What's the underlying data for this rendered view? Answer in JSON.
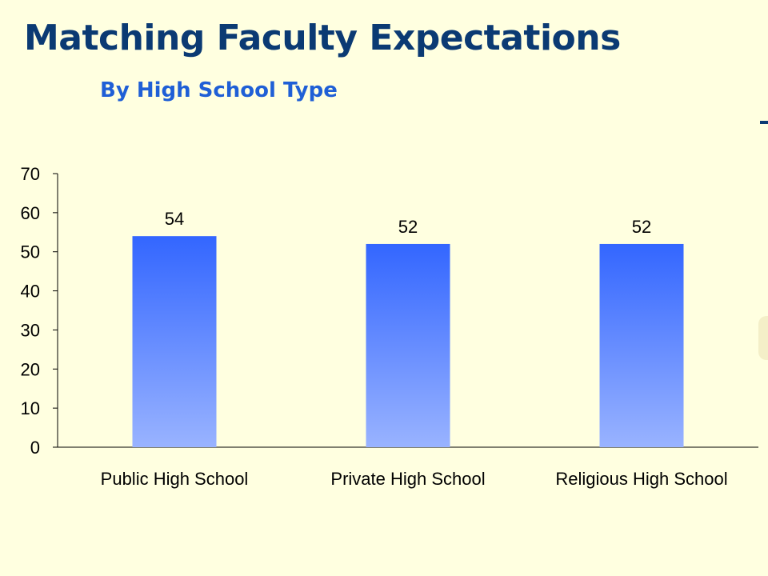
{
  "slide": {
    "title": "Matching Faculty Expectations",
    "subtitle": "By High School Type"
  },
  "colors": {
    "background": "#ffffe0",
    "title": "#0b3a73",
    "subtitle": "#1f5fd6",
    "bar_top": "#3366ff",
    "bar_bottom": "#99b3ff"
  },
  "chart_data": {
    "type": "bar",
    "title": "",
    "xlabel": "",
    "ylabel": "",
    "categories": [
      "Public High School",
      "Private High School",
      "Religious High School"
    ],
    "values": [
      54,
      52,
      52
    ],
    "data_labels": [
      "54",
      "52",
      "52"
    ],
    "ylim": [
      0,
      70
    ],
    "yticks": [
      0,
      10,
      20,
      30,
      40,
      50,
      60,
      70
    ],
    "grid": false,
    "legend": "none"
  }
}
